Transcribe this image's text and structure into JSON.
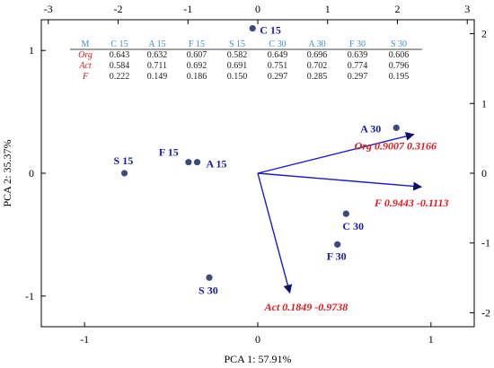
{
  "chart_data": {
    "type": "scatter",
    "title": "",
    "xlabel": "PCA 1: 57.91%",
    "ylabel": "PCA 2: 35.37%",
    "scores_xlim": [
      -1.25,
      1.25
    ],
    "scores_ylim": [
      -1.25,
      1.25
    ],
    "scores_xticks": [
      -1,
      0,
      1
    ],
    "scores_yticks": [
      -1,
      0,
      1
    ],
    "loadings_xlim": [
      -3.1,
      3.1
    ],
    "loadings_ylim": [
      -2.2,
      2.2
    ],
    "loadings_xticks": [
      -3,
      -2,
      -1,
      0,
      1,
      2,
      3
    ],
    "loadings_yticks": [
      -2,
      -1,
      0,
      1,
      2
    ],
    "grid": false,
    "points": [
      {
        "label": "C 15",
        "x": -0.03,
        "y": 1.18
      },
      {
        "label": "S 15",
        "x": -0.77,
        "y": 0.0
      },
      {
        "label": "F 15",
        "x": -0.4,
        "y": 0.09
      },
      {
        "label": "A 15",
        "x": -0.35,
        "y": 0.09
      },
      {
        "label": "A 30",
        "x": 0.8,
        "y": 0.37
      },
      {
        "label": "C 30",
        "x": 0.51,
        "y": -0.33
      },
      {
        "label": "F 30",
        "x": 0.46,
        "y": -0.58
      },
      {
        "label": "S 30",
        "x": -0.28,
        "y": -0.85
      }
    ],
    "vectors": [
      {
        "label": "Org 0.9007 0.3166",
        "x": 0.9007,
        "y": 0.3166
      },
      {
        "label": "F 0.9443 -0.1113",
        "x": 0.9443,
        "y": -0.1113
      },
      {
        "label": "Act 0.1849 -0.9738",
        "x": 0.1849,
        "y": -0.9738
      }
    ],
    "table": {
      "columns": [
        "M",
        "C 15",
        "A 15",
        "F 15",
        "S 15",
        "C 30",
        "A 30",
        "F 30",
        "S 30"
      ],
      "rows": [
        {
          "name": "Org",
          "values": [
            "0.643",
            "0.632",
            "0.607",
            "0.582",
            "0.649",
            "0.696",
            "0.639",
            "0.606"
          ]
        },
        {
          "name": "Act",
          "values": [
            "0.584",
            "0.711",
            "0.692",
            "0.691",
            "0.751",
            "0.702",
            "0.774",
            "0.796"
          ]
        },
        {
          "name": "F",
          "values": [
            "0.222",
            "0.149",
            "0.186",
            "0.150",
            "0.297",
            "0.285",
            "0.297",
            "0.195"
          ]
        }
      ]
    }
  }
}
